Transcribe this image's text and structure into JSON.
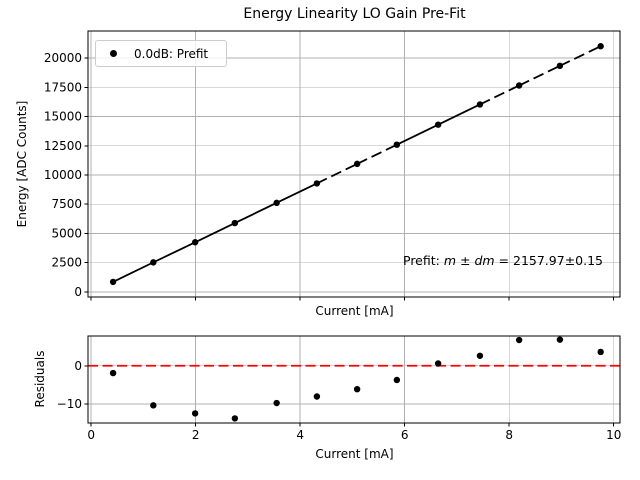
{
  "chart_data": [
    {
      "type": "scatter",
      "title": "Energy Linearity LO Gain Pre-Fit",
      "xlabel": "Current [mA]",
      "ylabel": "Energy [ADC Counts]",
      "x": [
        0.42,
        1.19,
        1.99,
        2.75,
        3.55,
        4.32,
        5.09,
        5.85,
        6.64,
        7.44,
        8.19,
        8.97,
        9.75
      ],
      "y": [
        860,
        2530,
        4250,
        5890,
        7620,
        9280,
        10950,
        12590,
        14300,
        16030,
        17650,
        19330,
        21010
      ],
      "xlim": [
        -0.06,
        10.12
      ],
      "ylim": [
        -430,
        22310
      ],
      "xticks": [
        0,
        2,
        4,
        6,
        8,
        10
      ],
      "xtick_labels_visible": false,
      "yticks": [
        0,
        2500,
        5000,
        7500,
        10000,
        12500,
        15000,
        17500,
        20000
      ],
      "grid": true,
      "line": {
        "color": "#000000",
        "width": 1.8,
        "style": "solid-with-dashed-extrapolation",
        "dashed_segments": [
          5,
          6,
          9,
          10,
          11
        ]
      },
      "marker": {
        "shape": "dot",
        "color": "#000000",
        "radius": 3.2
      },
      "legend": {
        "position": "upper left",
        "entries": [
          {
            "label": "0.0dB: Prefit",
            "marker": "dot",
            "color": "#000000"
          }
        ]
      },
      "annotation": {
        "prefix": "Prefit: ",
        "var1": "m",
        "op": " ± ",
        "var2": "dm",
        "eq": " = ",
        "value": "2157.97±0.15",
        "slope": 2157.97,
        "slope_error": 0.15
      },
      "colors": {
        "grid": "#b0b0b0",
        "spine": "#000000",
        "text": "#000000"
      }
    },
    {
      "type": "scatter",
      "title": "",
      "xlabel": "Current [mA]",
      "ylabel": "Residuals",
      "x": [
        0.42,
        1.19,
        1.99,
        2.75,
        3.55,
        4.32,
        5.09,
        5.85,
        6.64,
        7.44,
        8.19,
        8.97,
        9.75
      ],
      "y": [
        -1.9,
        -10.3,
        -12.4,
        -13.7,
        -9.7,
        -8.0,
        -6.1,
        -3.7,
        0.6,
        2.6,
        6.7,
        6.8,
        3.6
      ],
      "xlim": [
        -0.06,
        10.12
      ],
      "ylim": [
        -14.9,
        7.75
      ],
      "xticks": [
        0,
        2,
        4,
        6,
        8,
        10
      ],
      "xtick_labels_visible": true,
      "yticks": [
        -10,
        0
      ],
      "grid": true,
      "refline": {
        "y": 0,
        "color": "#ff0000",
        "style": "dashed"
      },
      "marker": {
        "shape": "dot",
        "color": "#000000",
        "radius": 3.2
      },
      "colors": {
        "grid": "#b0b0b0",
        "spine": "#000000",
        "text": "#000000"
      }
    }
  ]
}
